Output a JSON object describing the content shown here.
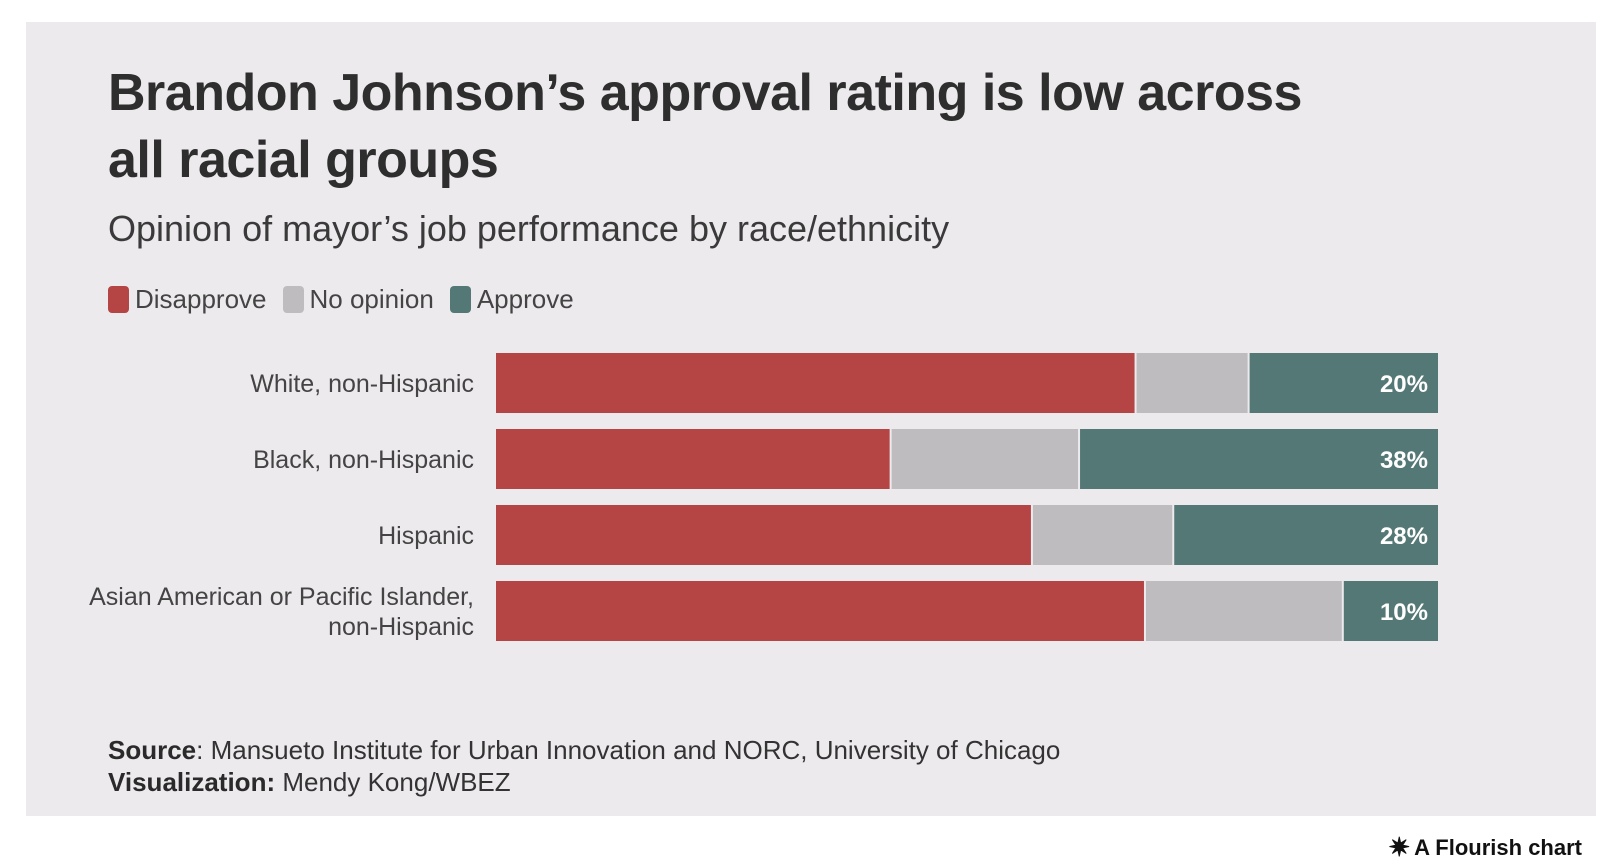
{
  "title": "Brandon Johnson’s approval rating is low across all racial groups",
  "subtitle": "Opinion of mayor’s job performance by race/ethnicity",
  "legend": [
    {
      "label": "Disapprove",
      "color": "#b54545"
    },
    {
      "label": "No opinion",
      "color": "#bfbcbf"
    },
    {
      "label": "Approve",
      "color": "#547876"
    }
  ],
  "chart_data": {
    "type": "bar",
    "orientation": "horizontal",
    "stacked": true,
    "categories": [
      [
        "White, non-Hispanic"
      ],
      [
        "Black, non-Hispanic"
      ],
      [
        "Hispanic"
      ],
      [
        "Asian American or Pacific Islander,",
        "non-Hispanic"
      ]
    ],
    "series": [
      {
        "name": "Disapprove",
        "color": "#b54545",
        "values": [
          68,
          42,
          57,
          69
        ]
      },
      {
        "name": "No opinion",
        "color": "#bfbcbf",
        "values": [
          12,
          20,
          15,
          21
        ]
      },
      {
        "name": "Approve",
        "color": "#547876",
        "values": [
          20,
          38,
          28,
          10
        ]
      }
    ],
    "data_labels": [
      "20%",
      "38%",
      "28%",
      "10%"
    ],
    "xlim": [
      0,
      100
    ]
  },
  "footer": {
    "source_label": "Source",
    "source_text": ": Mansueto Institute for Urban Innovation and NORC, University of Chicago",
    "viz_label": "Visualization:",
    "viz_text": " Mendy Kong/WBEZ"
  },
  "credit": {
    "icon": "flourish-asterisk-icon",
    "text": "A Flourish chart"
  }
}
